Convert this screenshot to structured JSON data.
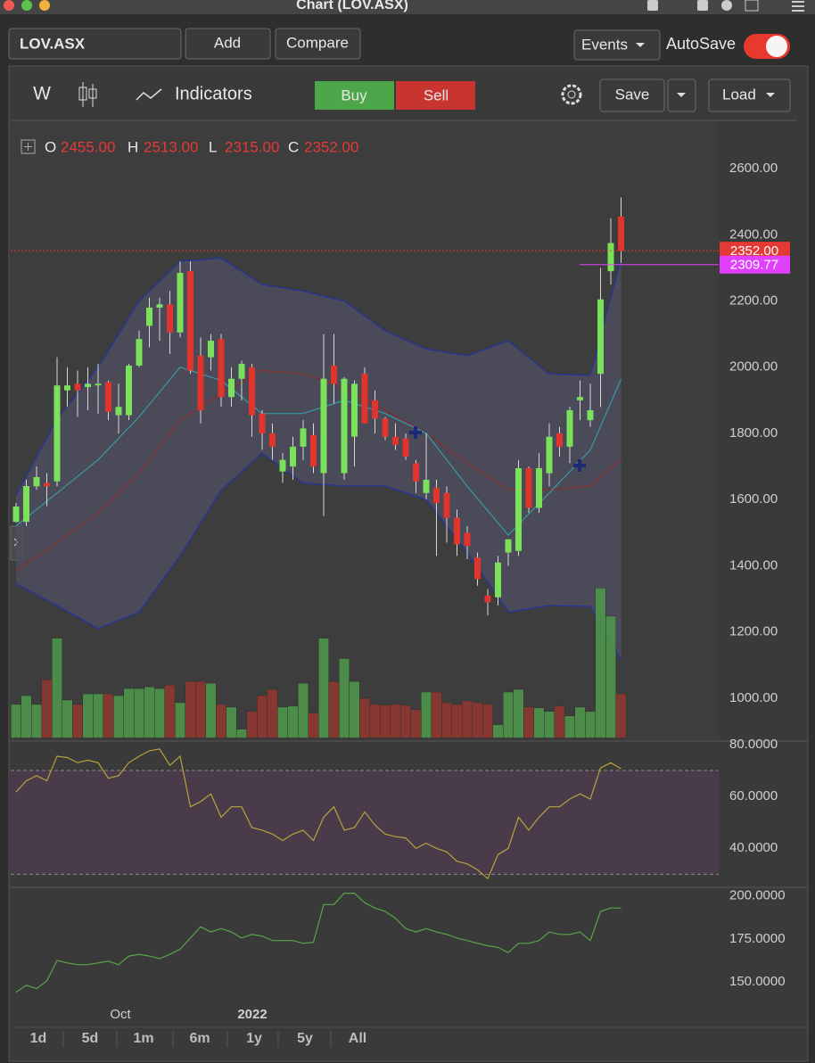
{
  "window": {
    "title": "Chart (LOV.ASX)"
  },
  "toolbar": {
    "symbol": "LOV.ASX",
    "add": "Add",
    "compare": "Compare",
    "events": "Events",
    "autosave": "AutoSave"
  },
  "chart_toolbar": {
    "period": "W",
    "indicators": "Indicators",
    "buy": "Buy",
    "sell": "Sell",
    "save": "Save",
    "load": "Load"
  },
  "ohlc": [
    {
      "key": "O",
      "value": "2455.00"
    },
    {
      "key": "H",
      "value": "2513.00"
    },
    {
      "key": "L",
      "value": "2315.00"
    },
    {
      "key": "C",
      "value": "2352.00"
    }
  ],
  "x_labels": [
    "Oct",
    "2022"
  ],
  "ranges": [
    "1d",
    "5d",
    "1m",
    "6m",
    "1y",
    "5y",
    "All"
  ],
  "chart_data": [
    {
      "type": "candlestick",
      "up_color": "#7be05a",
      "down_color": "#e0342c",
      "volume_colors": [
        "#4f9a4c",
        "#93372f"
      ],
      "open": [
        1533,
        1533,
        1640,
        1650,
        1655,
        1930,
        1950,
        1940,
        1945,
        1955,
        1855,
        1855,
        2005,
        2125,
        2180,
        2190,
        2105,
        2290,
        2035,
        2030,
        2085,
        1910,
        1965,
        2000,
        1860,
        1800,
        1685,
        1700,
        1760,
        1795,
        1680,
        2005,
        1680,
        1790,
        1980,
        1900,
        1845,
        1790,
        1785,
        1710,
        1620,
        1635,
        1620,
        1545,
        1500,
        1425,
        1310,
        1305,
        1440,
        1445,
        1695,
        1575,
        1680,
        1800,
        1760,
        1900,
        1840,
        1980,
        2290,
        2455
      ],
      "high": [
        1590,
        1660,
        1700,
        1680,
        2030,
        2000,
        1990,
        2000,
        2010,
        1960,
        1950,
        2010,
        2110,
        2210,
        2210,
        2230,
        2320,
        2320,
        2090,
        2100,
        2100,
        2000,
        2020,
        2010,
        1870,
        1830,
        1740,
        1790,
        1840,
        1830,
        2100,
        2100,
        1970,
        1960,
        2000,
        1930,
        1850,
        1830,
        1800,
        1720,
        1800,
        1660,
        1640,
        1570,
        1520,
        1440,
        1330,
        1430,
        1480,
        1720,
        1700,
        1740,
        1830,
        1820,
        1880,
        1960,
        1950,
        2300,
        2450,
        2513
      ],
      "low": [
        1530,
        1520,
        1630,
        1580,
        1640,
        1880,
        1850,
        1870,
        1860,
        1840,
        1800,
        1840,
        2000,
        2060,
        2080,
        2040,
        2090,
        1980,
        1830,
        1990,
        1880,
        1880,
        1900,
        1790,
        1750,
        1720,
        1650,
        1660,
        1720,
        1680,
        1550,
        1890,
        1660,
        1700,
        1830,
        1800,
        1780,
        1750,
        1720,
        1620,
        1600,
        1430,
        1470,
        1430,
        1420,
        1340,
        1250,
        1280,
        1400,
        1430,
        1560,
        1560,
        1640,
        1730,
        1710,
        1840,
        1820,
        1880,
        2250,
        2315
      ],
      "close": [
        1579,
        1641,
        1668,
        1640,
        1945,
        1945,
        1930,
        1950,
        1950,
        1865,
        1880,
        2005,
        2085,
        2180,
        2190,
        2105,
        2285,
        1990,
        1870,
        2080,
        1910,
        1965,
        2010,
        1855,
        1800,
        1760,
        1720,
        1760,
        1815,
        1700,
        1965,
        1950,
        1965,
        1950,
        1830,
        1845,
        1790,
        1765,
        1730,
        1655,
        1660,
        1590,
        1545,
        1465,
        1460,
        1360,
        1290,
        1410,
        1480,
        1695,
        1575,
        1695,
        1790,
        1760,
        1870,
        1910,
        1870,
        2205,
        2375,
        2352
      ],
      "volume": [
        38,
        48,
        38,
        66,
        113,
        43,
        38,
        50,
        50,
        50,
        48,
        56,
        56,
        58,
        56,
        60,
        40,
        64,
        64,
        62,
        38,
        35,
        10,
        30,
        48,
        55,
        35,
        36,
        62,
        28,
        113,
        64,
        90,
        64,
        45,
        38,
        37,
        38,
        37,
        32,
        52,
        52,
        40,
        38,
        42,
        40,
        38,
        15,
        52,
        55,
        35,
        34,
        30,
        36,
        25,
        35,
        30,
        170,
        138,
        50
      ],
      "volume_ylim": [
        0,
        690
      ],
      "band": {
        "color": "#23349a",
        "fill": "#4f4f62",
        "upper": {
          "x": [
            0,
            4,
            8,
            12,
            16,
            20,
            24,
            28,
            32,
            36,
            40,
            44,
            48,
            52,
            56,
            59
          ],
          "values": [
            1614,
            1843,
            2000,
            2200,
            2320,
            2330,
            2250,
            2230,
            2200,
            2110,
            2055,
            2035,
            2080,
            1980,
            1975,
            2328
          ]
        },
        "lower": {
          "x": [
            0,
            4,
            8,
            12,
            16,
            20,
            24,
            28,
            32,
            36,
            40,
            44,
            48,
            52,
            56,
            59
          ],
          "values": [
            1345,
            1280,
            1210,
            1260,
            1430,
            1628,
            1740,
            1650,
            1641,
            1641,
            1600,
            1440,
            1260,
            1280,
            1277,
            1116
          ]
        }
      },
      "overlays": [
        {
          "color": "#8a2d2d",
          "x": [
            0,
            4,
            8,
            12,
            16,
            20,
            24,
            28,
            32,
            36,
            40,
            44,
            48,
            52,
            56,
            59
          ],
          "values": [
            1385,
            1470,
            1560,
            1680,
            1840,
            1920,
            1990,
            1980,
            1940,
            1870,
            1800,
            1710,
            1630,
            1630,
            1641,
            1722
          ]
        },
        {
          "color": "#3a9aa6",
          "x": [
            0,
            4,
            8,
            12,
            16,
            20,
            24,
            28,
            32,
            36,
            40,
            44,
            48,
            52,
            56,
            59
          ],
          "values": [
            1520,
            1620,
            1720,
            1850,
            2000,
            1960,
            1860,
            1860,
            1900,
            1860,
            1800,
            1640,
            1493,
            1620,
            1750,
            1964
          ]
        }
      ],
      "price_lines": [
        {
          "value": 2352,
          "label": "2352.00",
          "color": "#e53935"
        },
        {
          "value": 2309.77,
          "label": "2309.77",
          "color": "#e040fb"
        }
      ],
      "ylim": [
        880,
        2720
      ],
      "yticks": [
        {
          "value": 2600,
          "label": "2600.00"
        },
        {
          "value": 2400,
          "label": "2400.00"
        },
        {
          "value": 2200,
          "label": "2200.00"
        },
        {
          "value": 2000,
          "label": "2000.00"
        },
        {
          "value": 1800,
          "label": "1800.00"
        },
        {
          "value": 1600,
          "label": "1600.00"
        },
        {
          "value": 1400,
          "label": "1400.00"
        },
        {
          "value": 1200,
          "label": "1200.00"
        },
        {
          "value": 1000,
          "label": "1000.00"
        }
      ]
    },
    {
      "type": "line",
      "color": "#b8a23c",
      "band": [
        30,
        70
      ],
      "band_fill": "#4a3b4a",
      "values": [
        61.7,
        66,
        68,
        66,
        75.5,
        75,
        73,
        74,
        73,
        67,
        68,
        73,
        75.5,
        77.6,
        78.3,
        72,
        75.5,
        56,
        58,
        61,
        52,
        56,
        56,
        48,
        47,
        45.5,
        43,
        45.5,
        47,
        43,
        52,
        56,
        47,
        48,
        54,
        49,
        45.5,
        44.5,
        44,
        40,
        42,
        40,
        38.6,
        35,
        34,
        31.7,
        28.3,
        37.6,
        40,
        52,
        47,
        52,
        56,
        56,
        59,
        61,
        59,
        71,
        73,
        70.7
      ],
      "ylim": [
        26,
        81
      ],
      "yticks": [
        {
          "value": 80,
          "label": "80.0000"
        },
        {
          "value": 60,
          "label": "60.0000"
        },
        {
          "value": 40,
          "label": "40.0000"
        }
      ]
    },
    {
      "type": "line",
      "color": "#58a548",
      "values": [
        144,
        148,
        146,
        150.5,
        162.5,
        161,
        160,
        160,
        161,
        162,
        160,
        165,
        166,
        165,
        163.5,
        166,
        169,
        175.5,
        182,
        179,
        181,
        179,
        175.5,
        177.6,
        176.6,
        174,
        174,
        174,
        172.4,
        173,
        195,
        195,
        201.6,
        201.6,
        196,
        193,
        191,
        187,
        181,
        179,
        181,
        179,
        177.6,
        175.5,
        174,
        172.4,
        171,
        170,
        167,
        172.4,
        172.4,
        174,
        179,
        177.6,
        177.6,
        179,
        174,
        191,
        193,
        193
      ],
      "ylim": [
        137.5,
        204
      ],
      "yticks": [
        {
          "value": 200,
          "label": "200.0000"
        },
        {
          "value": 175,
          "label": "175.0000"
        },
        {
          "value": 150,
          "label": "150.0000"
        }
      ]
    }
  ]
}
